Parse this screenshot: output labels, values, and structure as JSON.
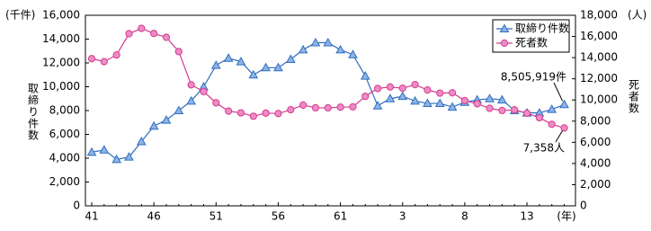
{
  "chart_data": {
    "type": "line",
    "categories": [
      "41",
      null,
      null,
      null,
      null,
      "46",
      null,
      null,
      null,
      null,
      "51",
      null,
      null,
      null,
      null,
      "56",
      null,
      null,
      null,
      null,
      "61",
      null,
      null,
      null,
      null,
      "3",
      null,
      null,
      null,
      null,
      "8",
      null,
      null,
      null,
      null,
      "13",
      null,
      null,
      null
    ],
    "x_unit": "(年)",
    "y_label": "取締り件数",
    "y_unit": "(千件)",
    "y2_label": "死者数",
    "y2_unit": "(人)",
    "ylim": [
      0,
      16000
    ],
    "yticks": [
      0,
      {
        "value": 2000,
        "label": "2,000"
      },
      {
        "value": 4000,
        "label": "4,000"
      },
      {
        "value": 6000,
        "label": "6,000"
      },
      {
        "value": 8000,
        "label": "8,000"
      },
      {
        "value": 10000,
        "label": "10,000"
      },
      {
        "value": 12000,
        "label": "12,000"
      },
      {
        "value": 14000,
        "label": "14,000"
      },
      {
        "value": 16000,
        "label": "16,000"
      }
    ],
    "y2lim": [
      0,
      18000
    ],
    "y2ticks": [
      0,
      {
        "value": 2000,
        "label": "2,000"
      },
      {
        "value": 4000,
        "label": "4,000"
      },
      {
        "value": 6000,
        "label": "6,000"
      },
      {
        "value": 8000,
        "label": "8,000"
      },
      {
        "value": 10000,
        "label": "10,000"
      },
      {
        "value": 12000,
        "label": "12,000"
      },
      {
        "value": 14000,
        "label": "14,000"
      },
      {
        "value": 16000,
        "label": "16,000"
      },
      {
        "value": 18000,
        "label": "18,000"
      }
    ],
    "legend": "upper right",
    "series": [
      {
        "name": "取締り件数",
        "color": "#2f6fbf",
        "marker": "triangle",
        "axis": "y",
        "values": [
          4500,
          4700,
          3900,
          4100,
          5400,
          6700,
          7200,
          8000,
          8800,
          10000,
          11800,
          12400,
          12100,
          11000,
          11600,
          11600,
          12300,
          13100,
          13700,
          13700,
          13100,
          12700,
          10900,
          8400,
          9000,
          9200,
          8800,
          8600,
          8600,
          8300,
          8700,
          8900,
          9000,
          8900,
          8000,
          7800,
          7800,
          8100,
          8505.919
        ]
      },
      {
        "name": "死者数",
        "color": "#d63a8e",
        "marker": "circle",
        "axis": "y2",
        "values": [
          13904,
          13618,
          14256,
          16257,
          16765,
          16278,
          15918,
          14574,
          11432,
          10792,
          9734,
          8945,
          8783,
          8466,
          8760,
          8719,
          9073,
          9520,
          9262,
          9261,
          9317,
          9347,
          10344,
          11086,
          11227,
          11109,
          11452,
          10942,
          10649,
          10679,
          9942,
          9640,
          9211,
          9006,
          9066,
          8747,
          8326,
          7702,
          7358
        ]
      }
    ],
    "annotations": [
      "8,505,919件",
      "7,358人"
    ]
  }
}
